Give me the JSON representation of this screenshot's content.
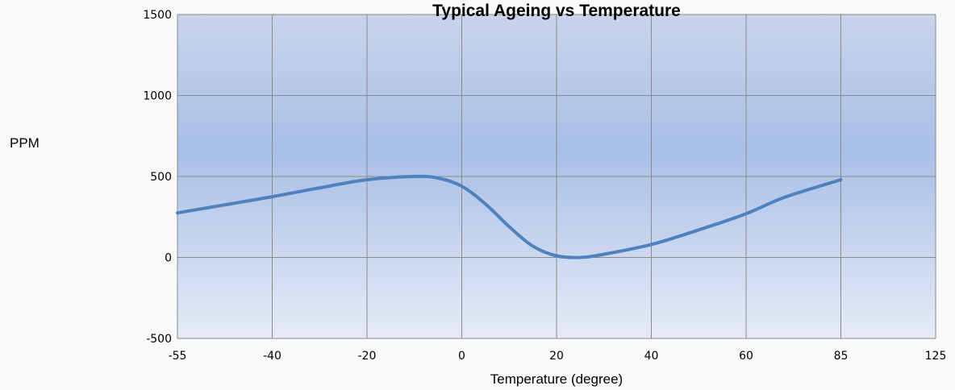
{
  "chart_data": {
    "type": "line",
    "title": "Typical Ageing vs Temperature",
    "xlabel": "Temperature (degree)",
    "ylabel": "PPM",
    "x_ticks": [
      "-55",
      "-40",
      "-20",
      "0",
      "20",
      "40",
      "60",
      "85",
      "125"
    ],
    "y_ticks": [
      "1500",
      "1000",
      "500",
      "0",
      "-500"
    ],
    "ylim": [
      -500,
      1500
    ],
    "grid": true,
    "series": [
      {
        "x": [
          -55,
          -40,
          -30,
          -20,
          -10,
          -5,
          0,
          5,
          10,
          15,
          20,
          25,
          30,
          40,
          50,
          60,
          70,
          85
        ],
        "values": [
          275,
          375,
          430,
          480,
          500,
          490,
          440,
          330,
          190,
          70,
          10,
          0,
          20,
          80,
          170,
          270,
          370,
          480
        ]
      }
    ]
  },
  "colors": {
    "plot_top": "#c8d4eb",
    "plot_mid": "#a9bfe6",
    "plot_bottom": "#e6ebf6",
    "grid": "#8a8a8a",
    "line": "#4f81bd"
  }
}
